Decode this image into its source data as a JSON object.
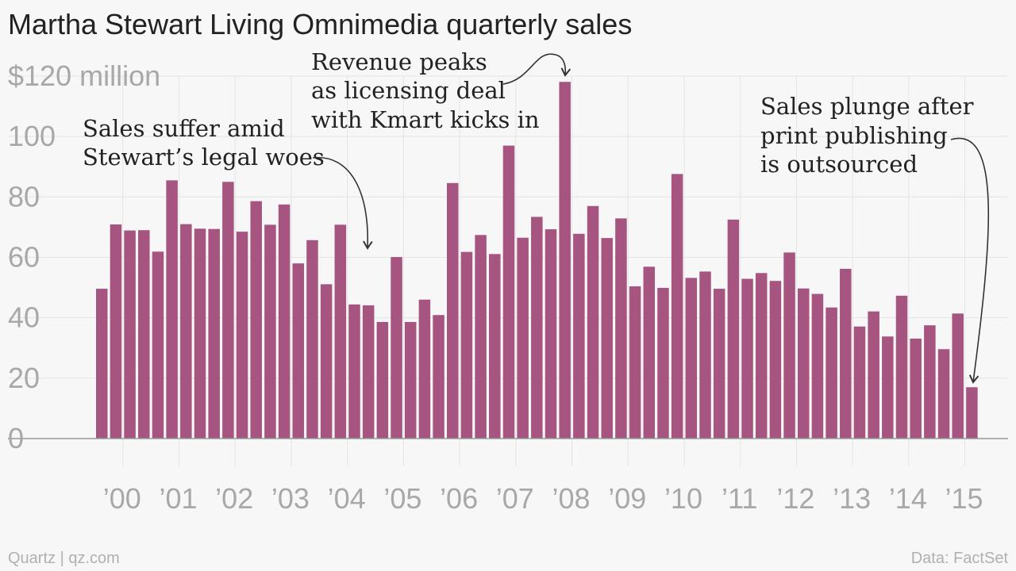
{
  "title": "Martha Stewart Living Omnimedia quarterly sales",
  "footer": {
    "left": "Quartz | qz.com",
    "right": "Data: FactSet"
  },
  "colors": {
    "bar": "#a5557f",
    "grid": "#e4e4e4",
    "axis": "#999999",
    "tick_text": "#a8a8a8",
    "text": "#222222"
  },
  "chart_data": {
    "type": "bar",
    "ylim": [
      0,
      120
    ],
    "y_ticks": [
      {
        "value": 0,
        "label": "0"
      },
      {
        "value": 20,
        "label": "20"
      },
      {
        "value": 40,
        "label": "40"
      },
      {
        "value": 60,
        "label": "60"
      },
      {
        "value": 80,
        "label": "80"
      },
      {
        "value": 100,
        "label": "100"
      },
      {
        "value": 120,
        "label": "$120 million"
      }
    ],
    "x_start": "Q3 1999",
    "x_ticks": [
      "’00",
      "’01",
      "’02",
      "’03",
      "’04",
      "’05",
      "’06",
      "’07",
      "’08",
      "’09",
      "’10",
      "’11",
      "’12",
      "’13",
      "’14",
      "’15"
    ],
    "grid": true,
    "values": [
      49.6,
      70.9,
      68.9,
      69.0,
      61.9,
      85.5,
      71.0,
      69.5,
      69.4,
      85.0,
      68.5,
      78.6,
      70.8,
      77.5,
      58.0,
      65.7,
      51.1,
      70.8,
      44.4,
      44.1,
      38.6,
      60.1,
      38.6,
      46.0,
      40.9,
      84.6,
      61.8,
      67.4,
      61.1,
      97.0,
      66.5,
      73.4,
      69.3,
      118.1,
      67.8,
      77.0,
      66.4,
      72.9,
      50.4,
      56.9,
      49.9,
      87.6,
      53.2,
      55.3,
      49.6,
      72.5,
      52.9,
      54.8,
      52.2,
      61.6,
      49.7,
      47.9,
      43.4,
      56.2,
      37.1,
      42.1,
      33.8,
      47.3,
      33.1,
      37.5,
      29.6,
      41.4,
      17.0
    ],
    "annotations": [
      {
        "lines": [
          "Sales suffer amid",
          "Stewart’s legal woes"
        ]
      },
      {
        "lines": [
          "Revenue peaks",
          "as licensing deal",
          "with Kmart kicks in"
        ]
      },
      {
        "lines": [
          "Sales plunge after",
          "print publishing",
          "is outsourced"
        ]
      }
    ]
  }
}
